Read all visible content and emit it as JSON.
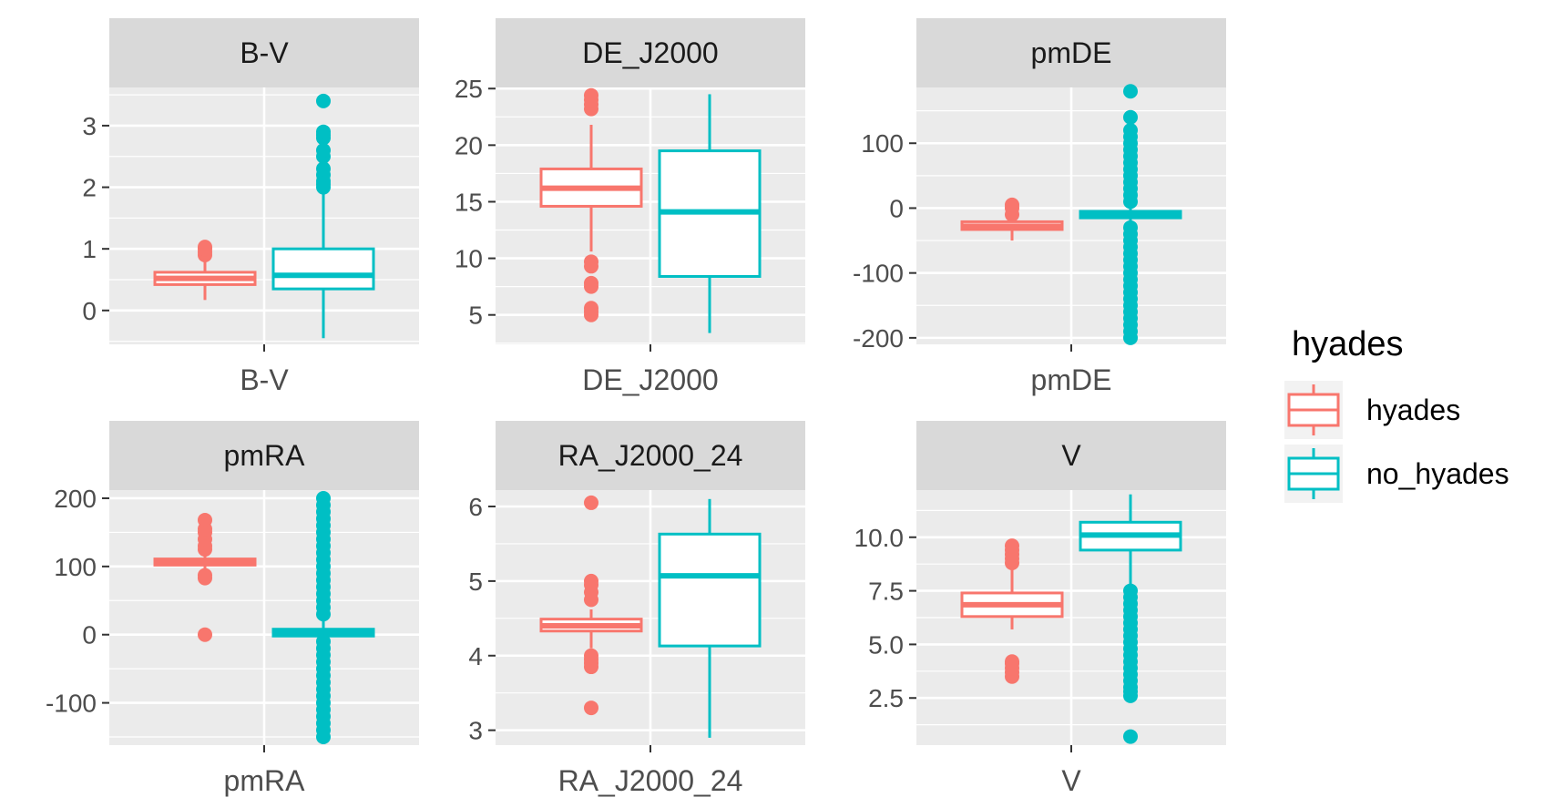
{
  "colors": {
    "hyades": "#F8766D",
    "no_hyades": "#00BFC4",
    "panel_bg": "#EBEBEB",
    "strip_bg": "#D9D9D9",
    "grid": "#FFFFFF"
  },
  "legend": {
    "title": "hyades",
    "items": [
      {
        "label": "hyades",
        "color": "#F8766D"
      },
      {
        "label": "no_hyades",
        "color": "#00BFC4"
      }
    ]
  },
  "chart_data": {
    "type": "boxplot",
    "facet_layout": "2 rows x 3 columns, free scales",
    "legend_position": "right",
    "panels": [
      {
        "strip": "B-V",
        "xlabel": "B-V",
        "ylim": [
          -0.55,
          3.62
        ],
        "yticks": [
          0,
          1,
          2,
          3
        ],
        "ytick_labels": [
          "0",
          "1",
          "2",
          "3"
        ],
        "boxes": [
          {
            "group": "hyades",
            "min": 0.17,
            "q1": 0.42,
            "median": 0.52,
            "q3": 0.62,
            "max": 0.86,
            "outliers": [
              0.9,
              0.95,
              1.0,
              1.03
            ]
          },
          {
            "group": "no_hyades",
            "min": -0.45,
            "q1": 0.35,
            "median": 0.57,
            "q3": 1.0,
            "max": 1.95,
            "outliers": [
              2.0,
              2.05,
              2.1,
              2.2,
              2.3,
              2.5,
              2.6,
              2.8,
              2.85,
              2.9,
              3.4
            ]
          }
        ]
      },
      {
        "strip": "DE_J2000",
        "xlabel": "DE_J2000",
        "ylim": [
          2.4,
          25.1
        ],
        "yticks": [
          5,
          10,
          15,
          20,
          25
        ],
        "ytick_labels": [
          "5",
          "10",
          "15",
          "20",
          "25"
        ],
        "boxes": [
          {
            "group": "hyades",
            "min": 10.6,
            "q1": 14.6,
            "median": 16.2,
            "q3": 17.9,
            "max": 21.8,
            "outliers": [
              5.0,
              5.3,
              5.6,
              7.5,
              7.8,
              9.3,
              9.7,
              23.2,
              23.6,
              24.0,
              24.4
            ]
          },
          {
            "group": "no_hyades",
            "min": 3.4,
            "q1": 8.4,
            "median": 14.1,
            "q3": 19.5,
            "max": 24.5,
            "outliers": []
          }
        ]
      },
      {
        "strip": "pmDE",
        "xlabel": "pmDE",
        "ylim": [
          -210,
          186
        ],
        "yticks": [
          -200,
          -100,
          0,
          100
        ],
        "ytick_labels": [
          "-200",
          "-100",
          "0",
          "100"
        ],
        "boxes": [
          {
            "group": "hyades",
            "min": -50,
            "q1": -33,
            "median": -28,
            "q3": -21,
            "max": -15,
            "outliers": [
              -10,
              0,
              5
            ]
          },
          {
            "group": "no_hyades",
            "min": -20,
            "q1": -15,
            "median": -10,
            "q3": -5,
            "max": 0,
            "outliers": [
              -200,
              -190,
              -180,
              -170,
              -160,
              -150,
              -140,
              -130,
              -120,
              -110,
              -100,
              -90,
              -80,
              -70,
              -60,
              -50,
              -40,
              -30,
              10,
              20,
              30,
              40,
              50,
              60,
              70,
              80,
              90,
              100,
              110,
              120,
              140,
              180
            ]
          }
        ]
      },
      {
        "strip": "pmRA",
        "xlabel": "pmRA",
        "ylim": [
          -162,
          212
        ],
        "yticks": [
          -100,
          0,
          100,
          200
        ],
        "ytick_labels": [
          "-100",
          "0",
          "100",
          "200"
        ],
        "boxes": [
          {
            "group": "hyades",
            "min": 95,
            "q1": 102,
            "median": 107,
            "q3": 111,
            "max": 120,
            "outliers": [
              0,
              83,
              87,
              125,
              130,
              140,
              150,
              155,
              168
            ]
          },
          {
            "group": "no_hyades",
            "min": -5,
            "q1": -2,
            "median": 3,
            "q3": 8,
            "max": 20,
            "outliers": [
              -150,
              -140,
              -130,
              -120,
              -110,
              -100,
              -90,
              -80,
              -70,
              -60,
              -50,
              -40,
              -30,
              -20,
              -10,
              30,
              40,
              50,
              60,
              70,
              80,
              90,
              100,
              110,
              120,
              130,
              140,
              150,
              160,
              170,
              180,
              190,
              200
            ]
          }
        ]
      },
      {
        "strip": "RA_J2000_24",
        "xlabel": "RA_J2000_24",
        "ylim": [
          2.8,
          6.22
        ],
        "yticks": [
          3,
          4,
          5,
          6
        ],
        "ytick_labels": [
          "3",
          "4",
          "5",
          "6"
        ],
        "boxes": [
          {
            "group": "hyades",
            "min": 4.1,
            "q1": 4.33,
            "median": 4.4,
            "q3": 4.49,
            "max": 4.62,
            "outliers": [
              3.3,
              3.85,
              3.9,
              3.95,
              4.0,
              4.75,
              4.85,
              4.95,
              5.0,
              6.05
            ]
          },
          {
            "group": "no_hyades",
            "min": 2.9,
            "q1": 4.13,
            "median": 5.07,
            "q3": 5.63,
            "max": 6.1,
            "outliers": []
          }
        ]
      },
      {
        "strip": "V",
        "xlabel": "V",
        "ylim": [
          0.3,
          12.2
        ],
        "yticks": [
          2.5,
          5.0,
          7.5,
          10.0
        ],
        "ytick_labels": [
          "2.5",
          "5.0",
          "7.5",
          "10.0"
        ],
        "boxes": [
          {
            "group": "hyades",
            "min": 5.7,
            "q1": 6.3,
            "median": 6.85,
            "q3": 7.4,
            "max": 8.5,
            "outliers": [
              3.5,
              3.7,
              3.9,
              4.1,
              4.2,
              8.8,
              9.0,
              9.2,
              9.4,
              9.6
            ]
          },
          {
            "group": "no_hyades",
            "min": 7.8,
            "q1": 9.4,
            "median": 10.1,
            "q3": 10.7,
            "max": 12.0,
            "outliers": [
              0.7,
              2.6,
              2.8,
              3.0,
              3.3,
              3.6,
              3.9,
              4.2,
              4.5,
              4.8,
              5.1,
              5.4,
              5.7,
              6.0,
              6.3,
              6.6,
              6.9,
              7.2,
              7.5
            ]
          }
        ]
      }
    ]
  }
}
